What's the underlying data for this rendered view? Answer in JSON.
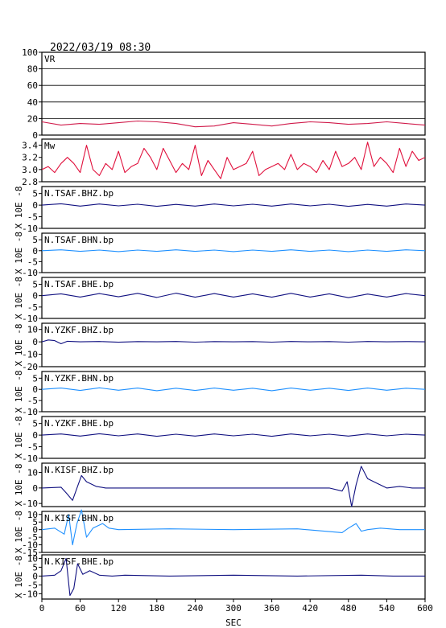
{
  "header": {
    "timestamp": "2022/03/19 08:30"
  },
  "chart_data": {
    "type": "line",
    "xlabel": "SEC",
    "xlim": [
      0,
      600
    ],
    "xticks": [
      0,
      60,
      120,
      180,
      240,
      300,
      360,
      420,
      480,
      540,
      600
    ],
    "colors": {
      "axis": "#000000",
      "vr": "#d01a4a",
      "mw": "#e0103c",
      "wave_dark": "#101080",
      "wave_light": "#1e90ff"
    },
    "panels": [
      {
        "id": "vr",
        "label": "VR",
        "ylim": [
          0,
          100
        ],
        "yticks": [
          0,
          20,
          40,
          60,
          80,
          100
        ],
        "grid": true,
        "color": "vr",
        "x": [
          0,
          30,
          60,
          90,
          120,
          150,
          180,
          210,
          240,
          270,
          300,
          330,
          360,
          390,
          420,
          450,
          480,
          510,
          540,
          570,
          600
        ],
        "values": [
          16,
          12,
          14,
          13,
          15,
          17,
          16,
          14,
          10,
          11,
          15,
          13,
          11,
          14,
          16,
          15,
          13,
          14,
          16,
          14,
          12
        ]
      },
      {
        "id": "mw",
        "label": "Mw",
        "ylim": [
          2.8,
          3.5
        ],
        "yticks": [
          2.8,
          3.0,
          3.2,
          3.4
        ],
        "grid": false,
        "color": "mw",
        "x": [
          0,
          10,
          20,
          30,
          40,
          50,
          60,
          70,
          80,
          90,
          100,
          110,
          120,
          130,
          140,
          150,
          160,
          170,
          180,
          190,
          200,
          210,
          220,
          230,
          240,
          250,
          260,
          270,
          280,
          290,
          300,
          310,
          320,
          330,
          340,
          350,
          360,
          370,
          380,
          390,
          400,
          410,
          420,
          430,
          440,
          450,
          460,
          470,
          480,
          490,
          500,
          510,
          520,
          530,
          540,
          550,
          560,
          570,
          580,
          590,
          600
        ],
        "values": [
          3.0,
          3.05,
          2.95,
          3.1,
          3.2,
          3.1,
          2.95,
          3.4,
          3.0,
          2.9,
          3.1,
          3.0,
          3.3,
          2.95,
          3.05,
          3.1,
          3.35,
          3.2,
          3.0,
          3.35,
          3.15,
          2.95,
          3.1,
          3.0,
          3.4,
          2.9,
          3.15,
          3.0,
          2.85,
          3.2,
          3.0,
          3.05,
          3.1,
          3.3,
          2.9,
          3.0,
          3.05,
          3.1,
          3.0,
          3.25,
          3.0,
          3.1,
          3.05,
          2.95,
          3.15,
          3.0,
          3.3,
          3.05,
          3.1,
          3.2,
          3.0,
          3.45,
          3.05,
          3.2,
          3.1,
          2.95,
          3.35,
          3.05,
          3.3,
          3.15,
          3.2
        ]
      },
      {
        "id": "tsaf-bhz",
        "label": "N.TSAF.BHZ.bp",
        "ylabel": "X 10E -8",
        "ylim": [
          -10,
          8
        ],
        "yticks": [
          -10,
          -5,
          0,
          5
        ],
        "color": "wave_dark",
        "x": [
          0,
          30,
          60,
          90,
          120,
          150,
          180,
          210,
          240,
          270,
          300,
          330,
          360,
          390,
          420,
          450,
          480,
          510,
          540,
          570,
          600
        ],
        "values": [
          0,
          0.6,
          -0.4,
          0.5,
          -0.3,
          0.4,
          -0.5,
          0.3,
          -0.4,
          0.5,
          -0.3,
          0.4,
          -0.4,
          0.5,
          -0.3,
          0.4,
          -0.5,
          0.3,
          -0.4,
          0.5,
          0
        ]
      },
      {
        "id": "tsaf-bhn",
        "label": "N.TSAF.BHN.bp",
        "ylabel": "X 10E -8",
        "ylim": [
          -10,
          8
        ],
        "yticks": [
          -10,
          -5,
          0,
          5
        ],
        "color": "wave_light",
        "x": [
          0,
          30,
          60,
          90,
          120,
          150,
          180,
          210,
          240,
          270,
          300,
          330,
          360,
          390,
          420,
          450,
          480,
          510,
          540,
          570,
          600
        ],
        "values": [
          0,
          0.4,
          -0.3,
          0.3,
          -0.4,
          0.3,
          -0.3,
          0.4,
          -0.3,
          0.3,
          -0.4,
          0.3,
          -0.3,
          0.4,
          -0.3,
          0.3,
          -0.4,
          0.3,
          -0.3,
          0.4,
          0
        ]
      },
      {
        "id": "tsaf-bhe",
        "label": "N.TSAF.BHE.bp",
        "ylabel": "X 10E -8",
        "ylim": [
          -10,
          8
        ],
        "yticks": [
          -10,
          -5,
          0,
          5
        ],
        "color": "wave_dark",
        "x": [
          0,
          30,
          60,
          90,
          120,
          150,
          180,
          210,
          240,
          270,
          300,
          330,
          360,
          390,
          420,
          450,
          480,
          510,
          540,
          570,
          600
        ],
        "values": [
          0,
          0.8,
          -0.6,
          0.9,
          -0.5,
          1.0,
          -0.8,
          1.1,
          -0.7,
          0.9,
          -0.6,
          0.8,
          -0.7,
          1.0,
          -0.6,
          0.8,
          -0.9,
          0.7,
          -0.6,
          0.9,
          0
        ]
      },
      {
        "id": "yzkf-bhz",
        "label": "N.YZKF.BHZ.bp",
        "ylabel": "X 10E -8",
        "ylim": [
          -20,
          15
        ],
        "yticks": [
          -20,
          -10,
          0,
          10
        ],
        "color": "wave_dark",
        "x": [
          0,
          10,
          20,
          30,
          40,
          60,
          90,
          120,
          150,
          180,
          210,
          240,
          270,
          300,
          330,
          360,
          390,
          420,
          450,
          480,
          510,
          540,
          570,
          600
        ],
        "values": [
          0,
          1.5,
          1.0,
          -1.5,
          0.5,
          0,
          0.3,
          -0.3,
          0.2,
          0,
          0.3,
          -0.2,
          0.2,
          0,
          0.2,
          -0.2,
          0.3,
          0,
          0.2,
          -0.2,
          0.3,
          0,
          0.2,
          0
        ]
      },
      {
        "id": "yzkf-bhn",
        "label": "N.YZKF.BHN.bp",
        "ylabel": "X 10E -8",
        "ylim": [
          -10,
          8
        ],
        "yticks": [
          -10,
          -5,
          0,
          5
        ],
        "color": "wave_light",
        "x": [
          0,
          30,
          60,
          90,
          120,
          150,
          180,
          210,
          240,
          270,
          300,
          330,
          360,
          390,
          420,
          450,
          480,
          510,
          540,
          570,
          600
        ],
        "values": [
          0,
          0.6,
          -0.5,
          0.7,
          -0.4,
          0.6,
          -0.6,
          0.5,
          -0.5,
          0.6,
          -0.4,
          0.5,
          -0.6,
          0.6,
          -0.4,
          0.5,
          -0.5,
          0.6,
          -0.4,
          0.5,
          0
        ]
      },
      {
        "id": "yzkf-bhe",
        "label": "N.YZKF.BHE.bp",
        "ylabel": "X 10E -8",
        "ylim": [
          -10,
          8
        ],
        "yticks": [
          -10,
          -5,
          0,
          5
        ],
        "color": "wave_dark",
        "x": [
          0,
          30,
          60,
          90,
          120,
          150,
          180,
          210,
          240,
          270,
          300,
          330,
          360,
          390,
          420,
          450,
          480,
          510,
          540,
          570,
          600
        ],
        "values": [
          0,
          0.5,
          -0.4,
          0.6,
          -0.3,
          0.5,
          -0.5,
          0.4,
          -0.4,
          0.5,
          -0.3,
          0.4,
          -0.5,
          0.5,
          -0.3,
          0.4,
          -0.4,
          0.5,
          -0.3,
          0.4,
          0
        ]
      },
      {
        "id": "kisf-bhz",
        "label": "N.KISF.BHZ.bp",
        "ylabel": "X 10E -8",
        "ylim": [
          -12,
          16
        ],
        "yticks": [
          -10,
          0,
          10
        ],
        "color": "wave_dark",
        "x": [
          0,
          30,
          40,
          48,
          55,
          62,
          70,
          85,
          100,
          150,
          300,
          450,
          470,
          478,
          485,
          492,
          500,
          510,
          525,
          540,
          560,
          580,
          600
        ],
        "values": [
          0,
          0.5,
          -4,
          -8,
          0,
          8,
          4,
          1,
          0,
          0,
          0,
          0,
          -2,
          4,
          -12,
          2,
          14,
          6,
          3,
          0,
          1,
          0,
          0
        ]
      },
      {
        "id": "kisf-bhn",
        "label": "N.KISF.BHN.bp",
        "ylabel": "X 10E -8",
        "ylim": [
          -15,
          12
        ],
        "yticks": [
          -15,
          -10,
          -5,
          0,
          5,
          10
        ],
        "color": "wave_light",
        "x": [
          0,
          20,
          35,
          42,
          48,
          55,
          62,
          70,
          80,
          95,
          105,
          120,
          200,
          300,
          400,
          470,
          480,
          492,
          500,
          510,
          530,
          560,
          600
        ],
        "values": [
          0,
          1,
          -3,
          10,
          -10,
          4,
          13,
          -5,
          1,
          4,
          1,
          0,
          0.5,
          0,
          0.5,
          -2,
          1,
          4,
          -1,
          0,
          1,
          0,
          0
        ]
      },
      {
        "id": "kisf-bhe",
        "label": "N.KISF.BHE.bp",
        "ylabel": "X 10E -8",
        "ylim": [
          -13,
          12
        ],
        "yticks": [
          -10,
          -5,
          0,
          5,
          10
        ],
        "color": "wave_dark",
        "x": [
          0,
          20,
          30,
          38,
          44,
          50,
          56,
          64,
          75,
          90,
          110,
          130,
          200,
          300,
          400,
          500,
          550,
          600
        ],
        "values": [
          0,
          0.5,
          3,
          10,
          -11,
          -7,
          7,
          1,
          3,
          0.5,
          0,
          0.5,
          0,
          0.5,
          0,
          0.5,
          0,
          0
        ]
      }
    ]
  }
}
